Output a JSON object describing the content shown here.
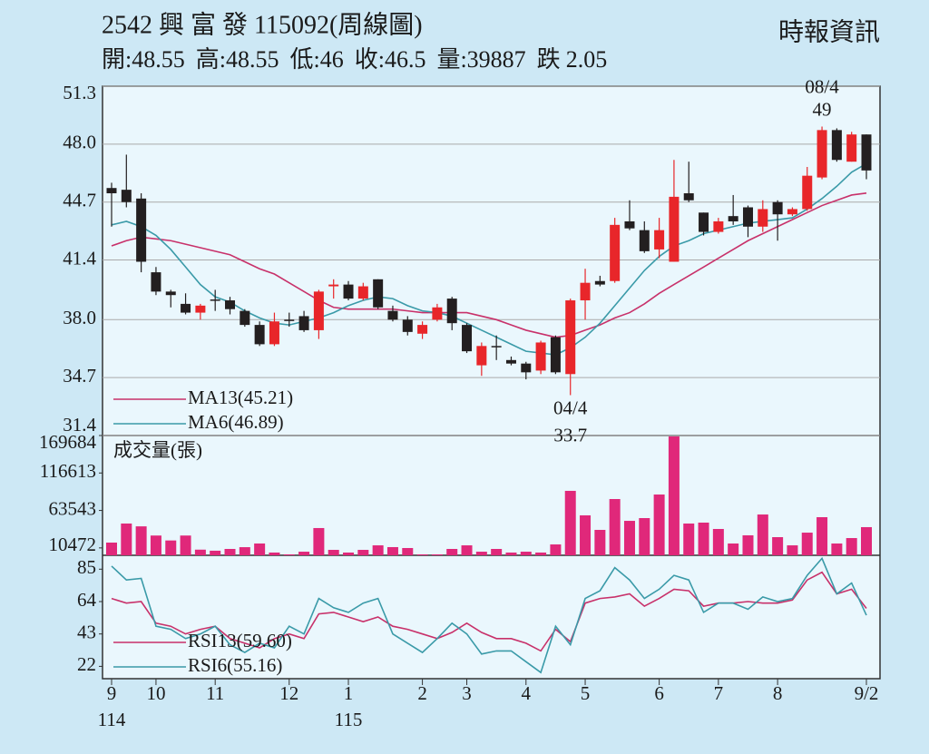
{
  "header": {
    "title": "2542 興 富 發 115092(周線圖)",
    "source": "時報資訊",
    "summary": [
      {
        "label": "開:",
        "value": 48.55
      },
      {
        "label": "高:",
        "value": 48.55
      },
      {
        "label": "低:",
        "value": 46
      },
      {
        "label": "收:",
        "value": 46.5
      },
      {
        "label": "量:",
        "value": 39887
      },
      {
        "label": "跌",
        "value": 2.05
      }
    ]
  },
  "chart_data": [
    {
      "type": "candlestick",
      "up_color": "#e8262a",
      "down_color": "#231f20",
      "grid": true,
      "open": [
        45.5,
        45.4,
        44.9,
        40.7,
        39.6,
        38.9,
        38.4,
        39.15,
        39.1,
        38.5,
        37.7,
        36.6,
        38.0,
        38.2,
        37.4,
        39.9,
        40.0,
        39.2,
        40.3,
        38.5,
        38.0,
        37.2,
        38.0,
        39.2,
        37.7,
        35.4,
        36.5,
        35.7,
        35.5,
        35.1,
        37.0,
        34.9,
        39.1,
        40.2,
        40.2,
        43.6,
        43.1,
        42.0,
        41.3,
        45.2,
        44.1,
        43.0,
        43.9,
        44.4,
        43.3,
        44.7,
        44.0,
        44.3,
        46.1,
        48.8,
        47.0,
        48.55
      ],
      "high": [
        45.8,
        47.4,
        45.2,
        41.0,
        39.7,
        39.5,
        38.9,
        39.7,
        39.3,
        38.6,
        37.9,
        38.4,
        38.4,
        38.5,
        39.7,
        40.3,
        40.2,
        40.1,
        40.3,
        38.8,
        38.2,
        37.9,
        38.9,
        39.3,
        37.8,
        36.7,
        37.1,
        35.9,
        35.6,
        36.8,
        37.1,
        39.2,
        40.9,
        40.5,
        43.8,
        44.8,
        43.6,
        43.8,
        47.1,
        47.0,
        44.1,
        43.8,
        45.1,
        44.5,
        44.8,
        44.8,
        44.4,
        46.7,
        49.0,
        48.9,
        48.7,
        48.55
      ],
      "low": [
        43.3,
        44.4,
        40.7,
        39.4,
        38.7,
        38.3,
        38.0,
        38.5,
        38.3,
        37.6,
        36.5,
        36.5,
        37.6,
        37.3,
        36.9,
        39.2,
        39.1,
        39.1,
        38.6,
        37.9,
        37.1,
        36.9,
        37.9,
        37.4,
        36.1,
        34.8,
        35.7,
        35.4,
        34.6,
        34.9,
        34.9,
        33.7,
        38.0,
        39.9,
        40.1,
        43.1,
        41.8,
        41.5,
        41.3,
        44.7,
        42.8,
        42.9,
        43.4,
        42.7,
        43.0,
        42.5,
        43.9,
        44.2,
        46.0,
        47.0,
        47.0,
        46
      ],
      "close": [
        45.2,
        44.7,
        41.3,
        39.6,
        39.4,
        38.4,
        38.8,
        39.1,
        38.6,
        37.7,
        36.6,
        37.9,
        38.0,
        37.4,
        39.6,
        40.0,
        39.2,
        39.9,
        38.7,
        38.0,
        37.3,
        37.7,
        38.7,
        37.8,
        36.2,
        36.5,
        36.5,
        35.5,
        35.0,
        36.7,
        35.0,
        39.1,
        40.1,
        40.0,
        43.4,
        43.2,
        41.9,
        43.1,
        45.0,
        44.8,
        43.0,
        43.6,
        43.6,
        43.3,
        44.3,
        44.0,
        44.3,
        46.2,
        48.8,
        47.1,
        48.55,
        46.5
      ],
      "lines": [
        {
          "name": "MA13(45.21)",
          "color": "#c8316a",
          "values": [
            42.2,
            42.5,
            42.7,
            42.6,
            42.5,
            42.3,
            42.1,
            41.9,
            41.7,
            41.3,
            40.9,
            40.6,
            40.1,
            39.6,
            39.1,
            38.7,
            38.6,
            38.6,
            38.6,
            38.6,
            38.5,
            38.4,
            38.4,
            38.4,
            38.4,
            38.2,
            38.0,
            37.7,
            37.4,
            37.2,
            37.0,
            37.1,
            37.4,
            37.7,
            38.1,
            38.4,
            38.9,
            39.5,
            40.0,
            40.5,
            41.0,
            41.5,
            42.0,
            42.5,
            42.9,
            43.3,
            43.7,
            44.1,
            44.5,
            44.8,
            45.1,
            45.21
          ]
        },
        {
          "name": "MA6(46.89)",
          "color": "#3a9aa8",
          "values": [
            43.4,
            43.6,
            43.3,
            42.8,
            42.0,
            41.0,
            40.0,
            39.3,
            39.0,
            38.5,
            38.1,
            37.8,
            37.7,
            37.9,
            38.1,
            38.4,
            38.8,
            39.1,
            39.3,
            39.2,
            38.8,
            38.5,
            38.4,
            38.2,
            37.8,
            37.4,
            37.0,
            36.6,
            36.2,
            36.1,
            36.0,
            36.4,
            37.0,
            37.8,
            38.8,
            39.8,
            40.8,
            41.6,
            42.2,
            42.5,
            42.9,
            43.1,
            43.3,
            43.5,
            43.6,
            43.7,
            43.8,
            44.3,
            44.9,
            45.6,
            46.4,
            46.89
          ]
        }
      ],
      "ylim": [
        31.4,
        51.3
      ],
      "yticks": [
        31.4,
        34.7,
        {
          "value": 38.0,
          "label": "38.0"
        },
        41.4,
        44.7,
        {
          "value": 48.0,
          "label": "48.0"
        },
        51.3
      ],
      "annotations": [
        {
          "date": "04/4",
          "value": 33.7
        },
        {
          "date": "08/4",
          "value": 49
        }
      ]
    },
    {
      "type": "bar",
      "title": "成交量(張)",
      "color": "#e0287a",
      "values": [
        18000,
        45000,
        41000,
        28000,
        21000,
        28000,
        8000,
        6500,
        9000,
        11500,
        16700,
        3900,
        1300,
        5100,
        38600,
        7700,
        3900,
        7700,
        14100,
        11600,
        10300,
        1300,
        1300,
        9000,
        14100,
        5100,
        9000,
        3900,
        5100,
        3900,
        15400,
        91300,
        56600,
        36000,
        79700,
        48800,
        52700,
        86100,
        168400,
        45000,
        46300,
        37300,
        16700,
        28300,
        57800,
        25700,
        14100,
        32100,
        54000,
        16700,
        24400,
        39887
      ],
      "ylim": [
        0,
        169684
      ],
      "yticks": [
        10472,
        63543,
        116613,
        169684
      ]
    },
    {
      "type": "line",
      "categories": [
        "9",
        null,
        null,
        "10",
        null,
        null,
        null,
        "11",
        null,
        null,
        null,
        null,
        "12",
        null,
        null,
        null,
        "1",
        null,
        null,
        null,
        null,
        "2",
        null,
        null,
        "3",
        null,
        null,
        null,
        "4",
        null,
        null,
        null,
        "5",
        null,
        null,
        null,
        null,
        "6",
        null,
        null,
        null,
        "7",
        null,
        null,
        null,
        "8",
        null,
        null,
        null,
        null,
        null,
        "9/2"
      ],
      "categories_year": [
        "114",
        null,
        null,
        null,
        null,
        null,
        null,
        null,
        null,
        null,
        null,
        null,
        null,
        null,
        null,
        null,
        "115",
        null,
        null,
        null,
        null,
        null,
        null,
        null,
        null,
        null,
        null,
        null,
        null,
        null,
        null,
        null,
        null,
        null,
        null,
        null,
        null,
        null,
        null,
        null,
        null,
        null,
        null,
        null,
        null,
        null,
        null,
        null,
        null,
        null,
        null,
        null
      ],
      "series": [
        {
          "name": "RSI13(59.60)",
          "color": "#c8316a",
          "values": [
            66,
            63,
            64,
            50,
            48,
            43,
            46,
            48,
            40,
            37,
            34,
            40,
            43,
            40,
            56,
            57,
            54,
            51,
            54,
            48,
            46,
            43,
            40,
            44,
            50,
            44,
            40,
            40,
            37,
            32,
            46,
            38,
            63,
            66,
            67,
            69,
            61,
            66,
            72,
            71,
            61,
            63,
            63,
            64,
            63,
            63,
            65,
            78,
            83,
            69,
            72,
            59.6
          ]
        },
        {
          "name": "RSI6(55.16)",
          "color": "#3a9aa8",
          "values": [
            87,
            78,
            79,
            48,
            46,
            40,
            43,
            48,
            36,
            31,
            37,
            34,
            48,
            43,
            66,
            60,
            57,
            63,
            66,
            43,
            37,
            31,
            40,
            50,
            43,
            30,
            32,
            32,
            25,
            18,
            48,
            36,
            66,
            71,
            86,
            78,
            66,
            72,
            81,
            78,
            57,
            63,
            63,
            59,
            67,
            64,
            66,
            81,
            92,
            69,
            76,
            55.16
          ]
        }
      ],
      "ylim": [
        14,
        94
      ],
      "yticks": [
        22,
        43,
        64,
        85
      ]
    }
  ]
}
